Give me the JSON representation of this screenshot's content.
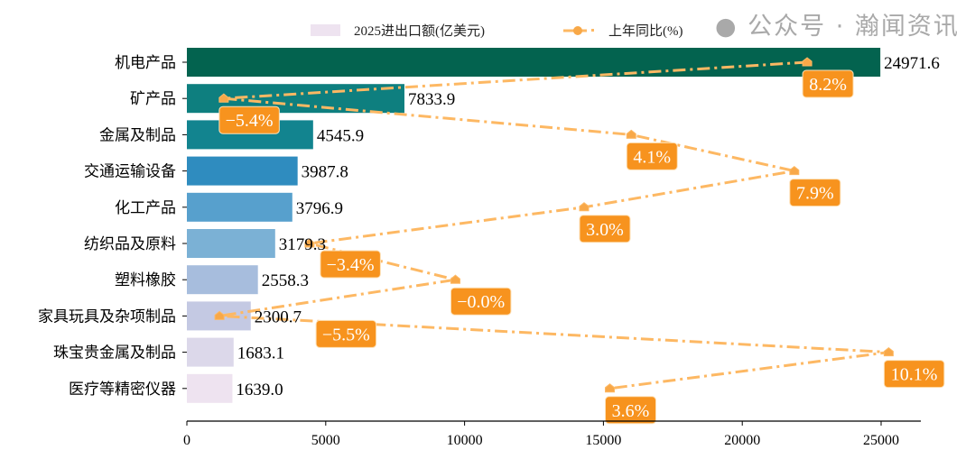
{
  "chart_data": {
    "type": "bar",
    "orientation": "horizontal",
    "categories": [
      "机电产品",
      "矿产品",
      "金属及制品",
      "交通运输设备",
      "化工产品",
      "纺织品及原料",
      "塑料橡胶",
      "家具玩具及杂项制品",
      "珠宝贵金属及制品",
      "医疗等精密仪器"
    ],
    "series": [
      {
        "name": "2025进出口额(亿美元)",
        "type": "bar",
        "values": [
          24971.6,
          7833.9,
          4545.9,
          3987.8,
          3796.9,
          3179.3,
          2558.3,
          2300.7,
          1683.1,
          1639.0
        ],
        "labels": [
          "24971.6",
          "7833.9",
          "4545.9",
          "3987.8",
          "3796.9",
          "3179.3",
          "2558.3",
          "2300.7",
          "1683.1",
          "1639.0"
        ],
        "colors": [
          "#03634f",
          "#0e7f7f",
          "#12848f",
          "#2f8cbf",
          "#57a0cd",
          "#7bb1d5",
          "#a7bddd",
          "#c4c9e3",
          "#dcd8ea",
          "#eee3f0"
        ]
      },
      {
        "name": "上年同比(%)",
        "type": "line",
        "values": [
          8.2,
          -5.4,
          4.1,
          7.9,
          3.0,
          -3.4,
          -0.0,
          -5.5,
          10.1,
          3.6
        ],
        "labels": [
          "8.2%",
          "−5.4%",
          "4.1%",
          "7.9%",
          "3.0%",
          "−3.4%",
          "−0.0%",
          "−5.5%",
          "10.1%",
          "3.6%"
        ],
        "color": "#fdb863",
        "label_bg": "#f7931e",
        "secondary_xlim": [
          -6.26,
          10.85
        ]
      }
    ],
    "xlim": [
      0,
      26430
    ],
    "xticks": [
      "0",
      "5000",
      "10000",
      "15000",
      "20000",
      "25000"
    ],
    "xtick_values": [
      0,
      5000,
      10000,
      15000,
      20000,
      25000
    ],
    "legend": "top-center",
    "grid": false
  },
  "watermark": "公众号 · 瀚闻资讯"
}
